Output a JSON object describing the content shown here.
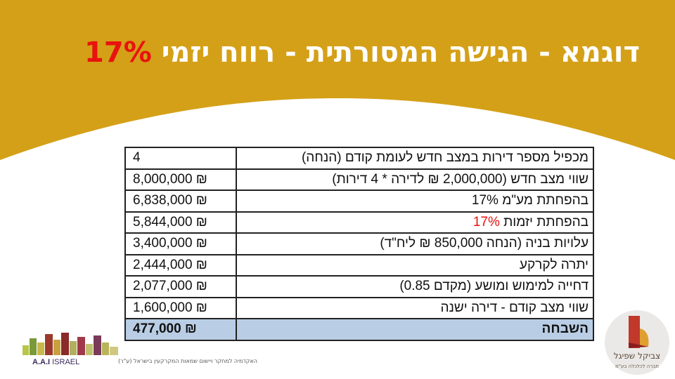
{
  "header": {
    "title_text": "דוגמא - הגישה המסורתית - רווח יזמי ",
    "title_pct": "17%",
    "colors": {
      "band": "#d4a017",
      "title": "#ffffff",
      "accent": "#e8130f"
    }
  },
  "table": {
    "rows": [
      {
        "label": "מכפיל מספר דירות במצב חדש לעומת קודם (הנחה)",
        "value": "4"
      },
      {
        "label": "שווי מצב חדש (2,000,000 ₪ לדירה * 4 דירות)",
        "value": "8,000,000 ₪"
      },
      {
        "label": "בהפחתת מע\"מ 17%",
        "value": "6,838,000 ₪"
      },
      {
        "label_prefix": "בהפחתת יזמות ",
        "label_highlight": "17%",
        "value": "5,844,000 ₪"
      },
      {
        "label": "עלויות בניה (הנחה 850,000 ₪ ליח\"ד)",
        "value": "3,400,000 ₪"
      },
      {
        "label": "יתרה לקרקע",
        "value": "2,444,000 ₪"
      },
      {
        "label": "דחייה למימוש ומושע (מקדם 0.85)",
        "value": "2,077,000 ₪"
      },
      {
        "label": "שווי מצב קודם - דירה ישנה",
        "value": "1,600,000 ₪"
      }
    ],
    "total": {
      "label": "השבחה",
      "value": "477,000 ₪"
    },
    "colors": {
      "total_row": "#b9cde5"
    }
  },
  "logos": {
    "aai": {
      "brand": "A.A.I",
      "brand2": "ISRAEL",
      "tagline": "האקדמיה למחקר ויישום שמאות המקרקעין בישראל (ע\"ר)"
    },
    "zs": {
      "name": "צביקל שפיגל",
      "sub": "חברה לכלכלה בע\"מ"
    }
  }
}
